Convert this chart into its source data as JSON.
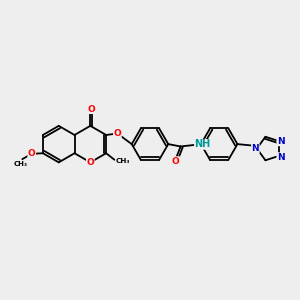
{
  "fig_bg": "#eeeeee",
  "bond_color": "#000000",
  "bond_width": 1.3,
  "atom_colors": {
    "O": "#ff0000",
    "N": "#0000cc",
    "H": "#009999",
    "C": "#000000"
  },
  "font_size_atom": 6.5,
  "xlim": [
    0,
    10
  ],
  "ylim": [
    0,
    10
  ]
}
